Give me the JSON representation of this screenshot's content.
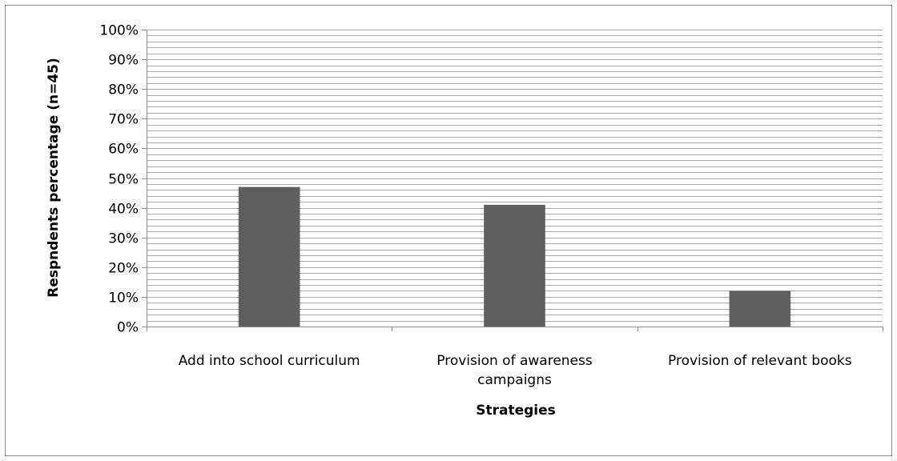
{
  "chart_data": {
    "type": "bar",
    "title": "",
    "xlabel": "Strategies",
    "ylabel": "Respndents percentage (n=45)",
    "categories": [
      [
        "Add into school curriculum"
      ],
      [
        "Provision of awareness",
        "campaigns"
      ],
      [
        "Provision of relevant books"
      ]
    ],
    "values": [
      47,
      41,
      12
    ],
    "ylim": [
      0,
      100
    ],
    "y_ticks": [
      "0%",
      "10%",
      "20%",
      "30%",
      "40%",
      "50%",
      "60%",
      "70%",
      "80%",
      "90%",
      "100%"
    ],
    "major_step": 10,
    "minor_step": 2,
    "grid": true,
    "legend": "none",
    "colors": {
      "bar": "#5f5f5f",
      "grid": "#a6a6a6",
      "axis": "#8c8c8c"
    }
  }
}
